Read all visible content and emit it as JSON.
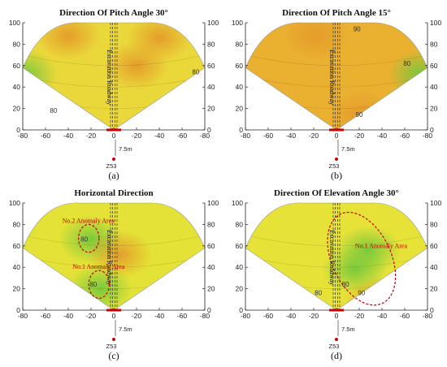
{
  "figure": {
    "roadway_label": "Excavation   Roadway",
    "distance_label": "7.5m",
    "marker_label": "Z53"
  },
  "colors": {
    "axis": "#222222",
    "anomaly": "#c00000",
    "roadway": "#444444",
    "marker": "#cc0000",
    "field_low": "#74c83c",
    "field_mid": "#e8de2c",
    "field_high": "#e49a2a"
  },
  "chart_data": [
    {
      "type": "heatmap",
      "panel": "(a)",
      "title": "Direction  Of  Pitch Angle 30°",
      "x_ticks": [
        "-80",
        "-60",
        "-40",
        "-20",
        "0",
        "-20",
        "-40",
        "-60",
        "-80"
      ],
      "y_ticks": [
        "0",
        "20",
        "40",
        "60",
        "80",
        "100"
      ],
      "y_range": [
        0,
        100
      ],
      "base_color": "#ead83a",
      "contour_labels": [
        {
          "text": "80",
          "x": -53,
          "y": 16
        },
        {
          "text": "80",
          "x": 72,
          "y": 52
        }
      ],
      "regions": [
        {
          "x": -78,
          "y": 52,
          "level": "low"
        },
        {
          "x": -40,
          "y": 88,
          "level": "high"
        },
        {
          "x": 40,
          "y": 86,
          "level": "high"
        },
        {
          "x": 20,
          "y": 60,
          "level": "high"
        }
      ],
      "anomalies": []
    },
    {
      "type": "heatmap",
      "panel": "(b)",
      "title": "Direction  Of  Pitch Angle 15°",
      "x_ticks": [
        "-80",
        "-60",
        "-40",
        "-20",
        "0",
        "-20",
        "-40",
        "-60",
        "-80"
      ],
      "y_ticks": [
        "0",
        "20",
        "40",
        "60",
        "80",
        "100"
      ],
      "y_range": [
        0,
        100
      ],
      "base_color": "#eab030",
      "contour_labels": [
        {
          "text": "90",
          "x": 18,
          "y": 92
        },
        {
          "text": "80",
          "x": 62,
          "y": 60
        },
        {
          "text": "90",
          "x": 20,
          "y": 12
        }
      ],
      "regions": [
        {
          "x": -18,
          "y": 88,
          "level": "high"
        },
        {
          "x": 22,
          "y": 14,
          "level": "high"
        },
        {
          "x": 74,
          "y": 52,
          "level": "low"
        }
      ],
      "anomalies": []
    },
    {
      "type": "heatmap",
      "panel": "(c)",
      "title": "Horizontal  Direction",
      "x_ticks": [
        "-80",
        "-60",
        "-40",
        "-20",
        "0",
        "-20",
        "-40",
        "-60",
        "-80"
      ],
      "y_ticks": [
        "0",
        "20",
        "40",
        "60",
        "80",
        "100"
      ],
      "y_range": [
        0,
        100
      ],
      "base_color": "#e4e236",
      "contour_labels": [
        {
          "text": "80",
          "x": -26,
          "y": 64
        },
        {
          "text": "80",
          "x": -18,
          "y": 22
        }
      ],
      "regions": [
        {
          "x": -20,
          "y": 66,
          "level": "low"
        },
        {
          "x": -12,
          "y": 20,
          "level": "low"
        },
        {
          "x": 5,
          "y": 52,
          "level": "high"
        }
      ],
      "anomalies": [
        {
          "label": "No.2 Anomaly Area",
          "cx": -22,
          "cy": 67,
          "rx": 9,
          "ry": 13
        },
        {
          "label": "No.1 Anomaly Area",
          "cx": -13,
          "cy": 24,
          "rx": 9,
          "ry": 13
        }
      ]
    },
    {
      "type": "heatmap",
      "panel": "(d)",
      "title": "Direction Of Elevation Angle 30°",
      "x_ticks": [
        "-80",
        "-60",
        "-40",
        "-20",
        "0",
        "-20",
        "-40",
        "-60",
        "-80"
      ],
      "y_ticks": [
        "0",
        "20",
        "40",
        "60",
        "80",
        "100"
      ],
      "y_range": [
        0,
        100
      ],
      "base_color": "#e6e238",
      "contour_labels": [
        {
          "text": "80",
          "x": -16,
          "y": 14
        },
        {
          "text": "80",
          "x": 8,
          "y": 22
        },
        {
          "text": "90",
          "x": 22,
          "y": 14
        }
      ],
      "regions": [
        {
          "x": 16,
          "y": 38,
          "level": "low"
        },
        {
          "x": 28,
          "y": 56,
          "level": "low"
        },
        {
          "x": 36,
          "y": 8,
          "level": "high"
        }
      ],
      "anomalies": [
        {
          "label": "No.1 Anomaly Area",
          "cx": 22,
          "cy": 48,
          "rx": 26,
          "ry": 46
        }
      ]
    }
  ]
}
